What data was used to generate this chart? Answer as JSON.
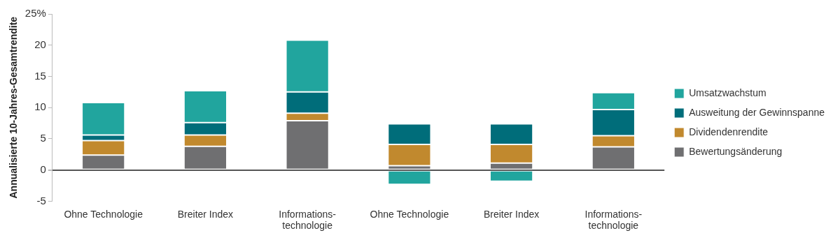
{
  "chart_data": {
    "type": "bar",
    "ylabel": "Annualisierte 10-Jahres-Gesamtrendite",
    "stacked": true,
    "legend": "right",
    "categories": [
      "Ohne Technologie",
      "Breiter Index",
      "Informations-\ntechnologie",
      "Ohne Technologie",
      "Breiter Index",
      "Informations-\ntechnologie"
    ],
    "ylim": [
      -5,
      25
    ],
    "yticks": [
      -5,
      0,
      5,
      10,
      15,
      20,
      {
        "value": 25,
        "label": "25%"
      }
    ],
    "series": [
      {
        "name": "Bewertungsänderung",
        "color": "#6f6f71",
        "values": [
          2.4,
          3.8,
          7.9,
          0.7,
          1.1,
          3.7
        ]
      },
      {
        "name": "Dividendenrendite",
        "color": "#c1892e",
        "values": [
          2.3,
          1.8,
          1.2,
          3.4,
          3.0,
          1.8
        ]
      },
      {
        "name": "Ausweitung der Gewinnspanne",
        "color": "#006d7a",
        "values": [
          0.9,
          2.0,
          3.4,
          3.3,
          3.3,
          4.2
        ]
      },
      {
        "name": "Umsatzwachstum",
        "color": "#21a59e",
        "values": [
          5.2,
          5.1,
          8.3,
          -2.3,
          -1.8,
          2.7
        ]
      }
    ]
  }
}
